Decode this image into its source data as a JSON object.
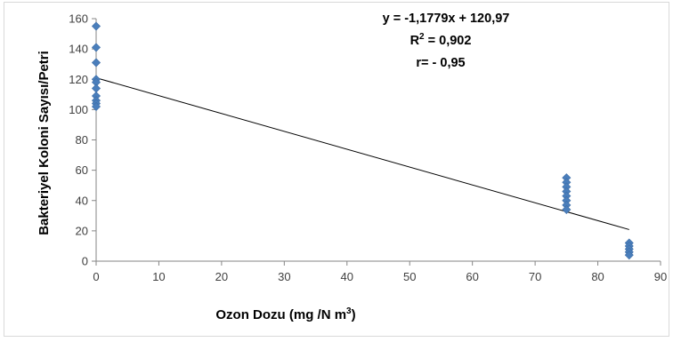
{
  "chart_data": {
    "type": "scatter",
    "xlabel": "Ozon Dozu (mg /N m",
    "xlabel_sup": "3",
    "xlabel_end": ")",
    "ylabel": "Bakteriyel Koloni Sayısı/Petri",
    "xlim": [
      0,
      90
    ],
    "ylim": [
      0,
      160
    ],
    "x_ticks": [
      0,
      10,
      20,
      30,
      40,
      50,
      60,
      70,
      80,
      90
    ],
    "y_ticks": [
      0,
      20,
      40,
      60,
      80,
      100,
      120,
      140,
      160
    ],
    "grid": false,
    "series": [
      {
        "marker": "diamond",
        "color": "#4a7ebb",
        "points": [
          [
            0,
            155
          ],
          [
            0,
            141
          ],
          [
            0,
            131
          ],
          [
            0,
            120
          ],
          [
            0,
            118
          ],
          [
            0,
            114
          ],
          [
            0,
            109
          ],
          [
            0,
            106
          ],
          [
            0,
            104
          ],
          [
            0,
            102
          ],
          [
            75,
            55
          ],
          [
            75,
            52
          ],
          [
            75,
            49
          ],
          [
            75,
            46
          ],
          [
            75,
            43
          ],
          [
            75,
            40
          ],
          [
            75,
            37
          ],
          [
            75,
            34
          ],
          [
            85,
            12
          ],
          [
            85,
            10
          ],
          [
            85,
            8
          ],
          [
            85,
            6
          ],
          [
            85,
            4
          ]
        ]
      }
    ],
    "trendline": {
      "slope": -1.1779,
      "intercept": 120.97,
      "x_range": [
        0,
        85
      ],
      "color": "#000000"
    },
    "annotations": {
      "equation": "y = -1,1779x + 120,97",
      "r2_label": "R",
      "r2_sup": "2",
      "r2_value": " = 0,902",
      "r": "r= - 0,95"
    }
  }
}
